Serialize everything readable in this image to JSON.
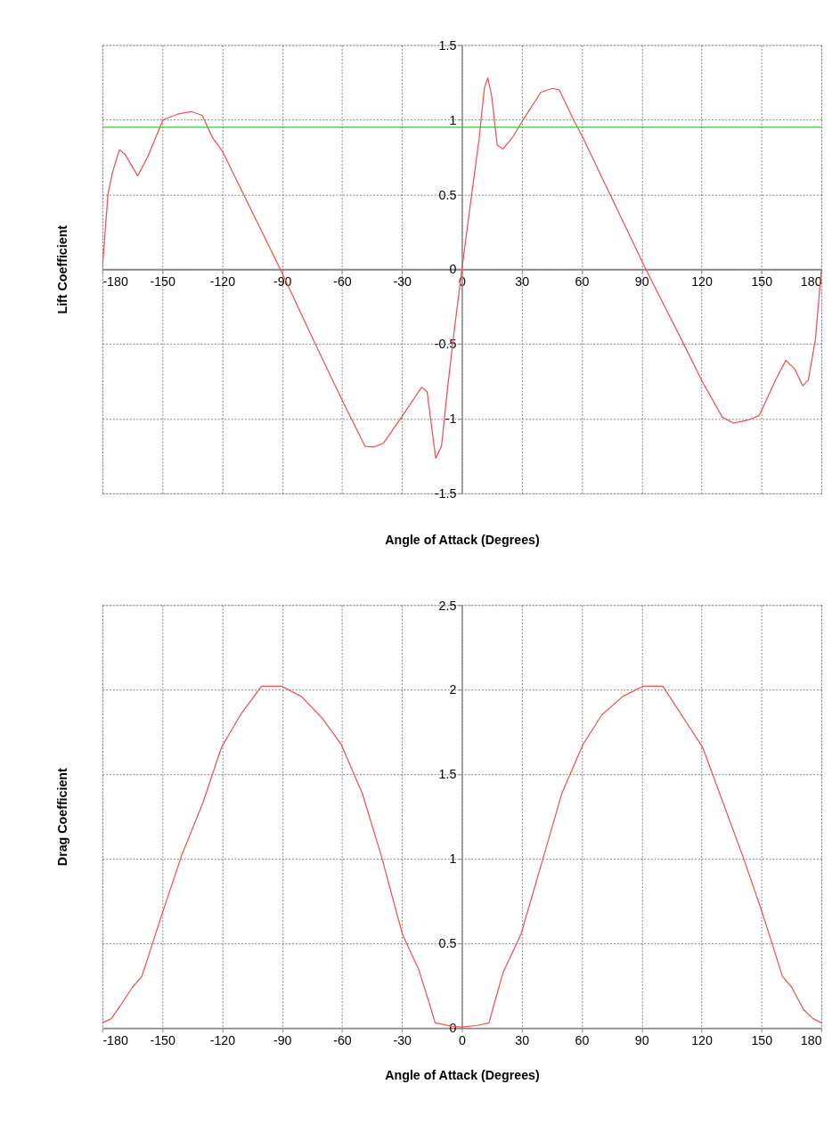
{
  "chart_data": [
    {
      "type": "line",
      "xlabel": "Angle of Attack (Degrees)",
      "ylabel": "Lift Coefficient",
      "x": [
        -180,
        -177.2,
        -175,
        -171.5,
        -168.7,
        -162.3,
        -157.4,
        -149.6,
        -141.8,
        -135.5,
        -130,
        -124.8,
        -119.9,
        -90.9,
        -73.9,
        -59.8,
        -48.5,
        -44.2,
        -39.3,
        -30.2,
        -20.2,
        -17.4,
        -13.1,
        -10.2,
        -7.4,
        -4.5,
        0,
        4.9,
        8.5,
        11.3,
        13,
        14.9,
        17.7,
        20.6,
        25.5,
        31.1,
        39.6,
        45.3,
        48.8,
        55.9,
        60.8,
        92.1,
        110.5,
        120.5,
        130.4,
        136,
        143.1,
        148.8,
        157.3,
        162.2,
        166.5,
        170.7,
        173.5,
        177,
        180
      ],
      "series": [
        {
          "color": "#f05050",
          "values": [
            0,
            0.5,
            0.645,
            0.8,
            0.77,
            0.625,
            0.75,
            1.0,
            1.04,
            1.055,
            1.03,
            0.88,
            0.79,
            0,
            -0.485,
            -0.88,
            -1.185,
            -1.19,
            -1.165,
            -0.99,
            -0.79,
            -0.82,
            -1.265,
            -1.185,
            -0.825,
            -0.485,
            0,
            0.5,
            0.86,
            1.215,
            1.28,
            1.16,
            0.83,
            0.805,
            0.885,
            1.01,
            1.185,
            1.21,
            1.2,
            1.0,
            0.875,
            0,
            -0.485,
            -0.755,
            -0.99,
            -1.03,
            -1.01,
            -0.98,
            -0.735,
            -0.61,
            -0.665,
            -0.78,
            -0.74,
            -0.47,
            0
          ]
        }
      ],
      "xlim": [
        -180,
        180
      ],
      "xticks": [
        -180,
        -150,
        -120,
        -90,
        -60,
        -30,
        0,
        30,
        60,
        90,
        120,
        150,
        180
      ],
      "ylim": [
        -1.5,
        1.5
      ],
      "yticks": [
        -1.5,
        -1,
        -0.5,
        0,
        0.5,
        1,
        1.5
      ],
      "grid": true,
      "ref_lines": [
        {
          "axis": "y",
          "value": 0.95,
          "color": "#33cc33"
        }
      ]
    },
    {
      "type": "line",
      "xlabel": "Angle of Attack (Degrees)",
      "ylabel": "Drag Coefficient",
      "x": [
        -180,
        -175.5,
        -170.8,
        -165,
        -160.2,
        -150.8,
        -140.3,
        -129.7,
        -120.3,
        -110.9,
        -100.3,
        -90.2,
        -80.4,
        -69.8,
        -60.4,
        -49.8,
        -40.4,
        -29.8,
        -21.6,
        -16.4,
        -13.4,
        -5.2,
        0,
        7.8,
        13.6,
        16,
        20.7,
        29.6,
        40.6,
        50,
        60.6,
        70,
        80.6,
        90.7,
        100.6,
        111.1,
        120.5,
        129.9,
        140.5,
        149.9,
        160.5,
        165.2,
        171,
        175.8,
        180
      ],
      "series": [
        {
          "color": "#f05050",
          "values": [
            0.03,
            0.055,
            0.135,
            0.24,
            0.305,
            0.65,
            1.02,
            1.33,
            1.66,
            1.85,
            2.02,
            2.02,
            1.96,
            1.83,
            1.675,
            1.385,
            1.02,
            0.555,
            0.345,
            0.15,
            0.03,
            0.01,
            0.005,
            0.015,
            0.03,
            0.135,
            0.33,
            0.555,
            1.0,
            1.385,
            1.675,
            1.85,
            1.96,
            2.02,
            2.02,
            1.83,
            1.66,
            1.36,
            1.02,
            0.7,
            0.305,
            0.24,
            0.11,
            0.055,
            0.03
          ]
        }
      ],
      "xlim": [
        -180,
        180
      ],
      "xticks": [
        -180,
        -150,
        -120,
        -90,
        -60,
        -30,
        0,
        30,
        60,
        90,
        120,
        150,
        180
      ],
      "ylim": [
        0,
        2.5
      ],
      "yticks": [
        0,
        0.5,
        1,
        1.5,
        2,
        2.5
      ],
      "grid": true
    }
  ]
}
